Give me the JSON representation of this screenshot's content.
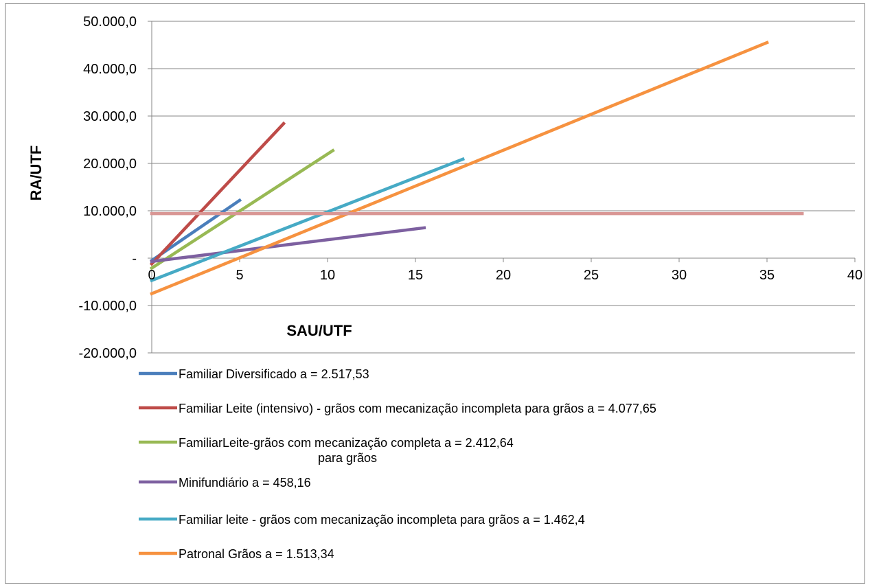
{
  "chart_data": {
    "type": "line",
    "title": "",
    "xlabel": "SAU/UTF",
    "ylabel": "RA/UTF",
    "xlim": [
      0,
      40
    ],
    "ylim": [
      -20000,
      50000
    ],
    "x_ticks": [
      0,
      5,
      10,
      15,
      20,
      25,
      30,
      35,
      40
    ],
    "x_tick_labels": [
      "0",
      "5",
      "10",
      "15",
      "20",
      "25",
      "30",
      "35",
      "40"
    ],
    "y_ticks": [
      50000,
      40000,
      30000,
      20000,
      10000,
      0,
      -10000,
      -20000
    ],
    "y_tick_labels": [
      "50.000,0",
      "40.000,0",
      "30.000,0",
      "20.000,0",
      "10.000,0",
      "-",
      "-10.000,0",
      "-20.000,0"
    ],
    "grid": "horizontal",
    "legend_position": "bottom",
    "series": [
      {
        "name": "Familiar Diversificado a = 2.517,53",
        "color": "#4a7ebb",
        "x": [
          0,
          5
        ],
        "y": [
          -500,
          12200
        ]
      },
      {
        "name": "Familiar Leite (intensivo) - grãos com mecanização incompleta para grãos a = 4.077,65",
        "color": "#be4b48",
        "x": [
          0,
          7.5
        ],
        "y": [
          -1200,
          28400
        ]
      },
      {
        "name": "FamiliarLeite-grãos com mecanização completa a = 2.412,64",
        "name_continuation": "para grãos",
        "color": "#98b954",
        "x": [
          0,
          10.3
        ],
        "y": [
          -2100,
          22700
        ]
      },
      {
        "name": "Minifundiário a = 458,16",
        "color": "#7d60a0",
        "x": [
          0,
          15.5
        ],
        "y": [
          -700,
          6400
        ]
      },
      {
        "name": "Familiar leite - grãos com mecanização incompleta para grãos a = 1.462,4",
        "color": "#46aac5",
        "x": [
          0,
          17.7
        ],
        "y": [
          -4700,
          20900
        ]
      },
      {
        "name": "Patronal Grãos a = 1.513,34",
        "color": "#f69240",
        "x": [
          0,
          35
        ],
        "y": [
          -7500,
          45500
        ]
      },
      {
        "name": "",
        "color": "#d99694",
        "x": [
          0,
          37
        ],
        "y": [
          9400,
          9400
        ]
      }
    ]
  }
}
